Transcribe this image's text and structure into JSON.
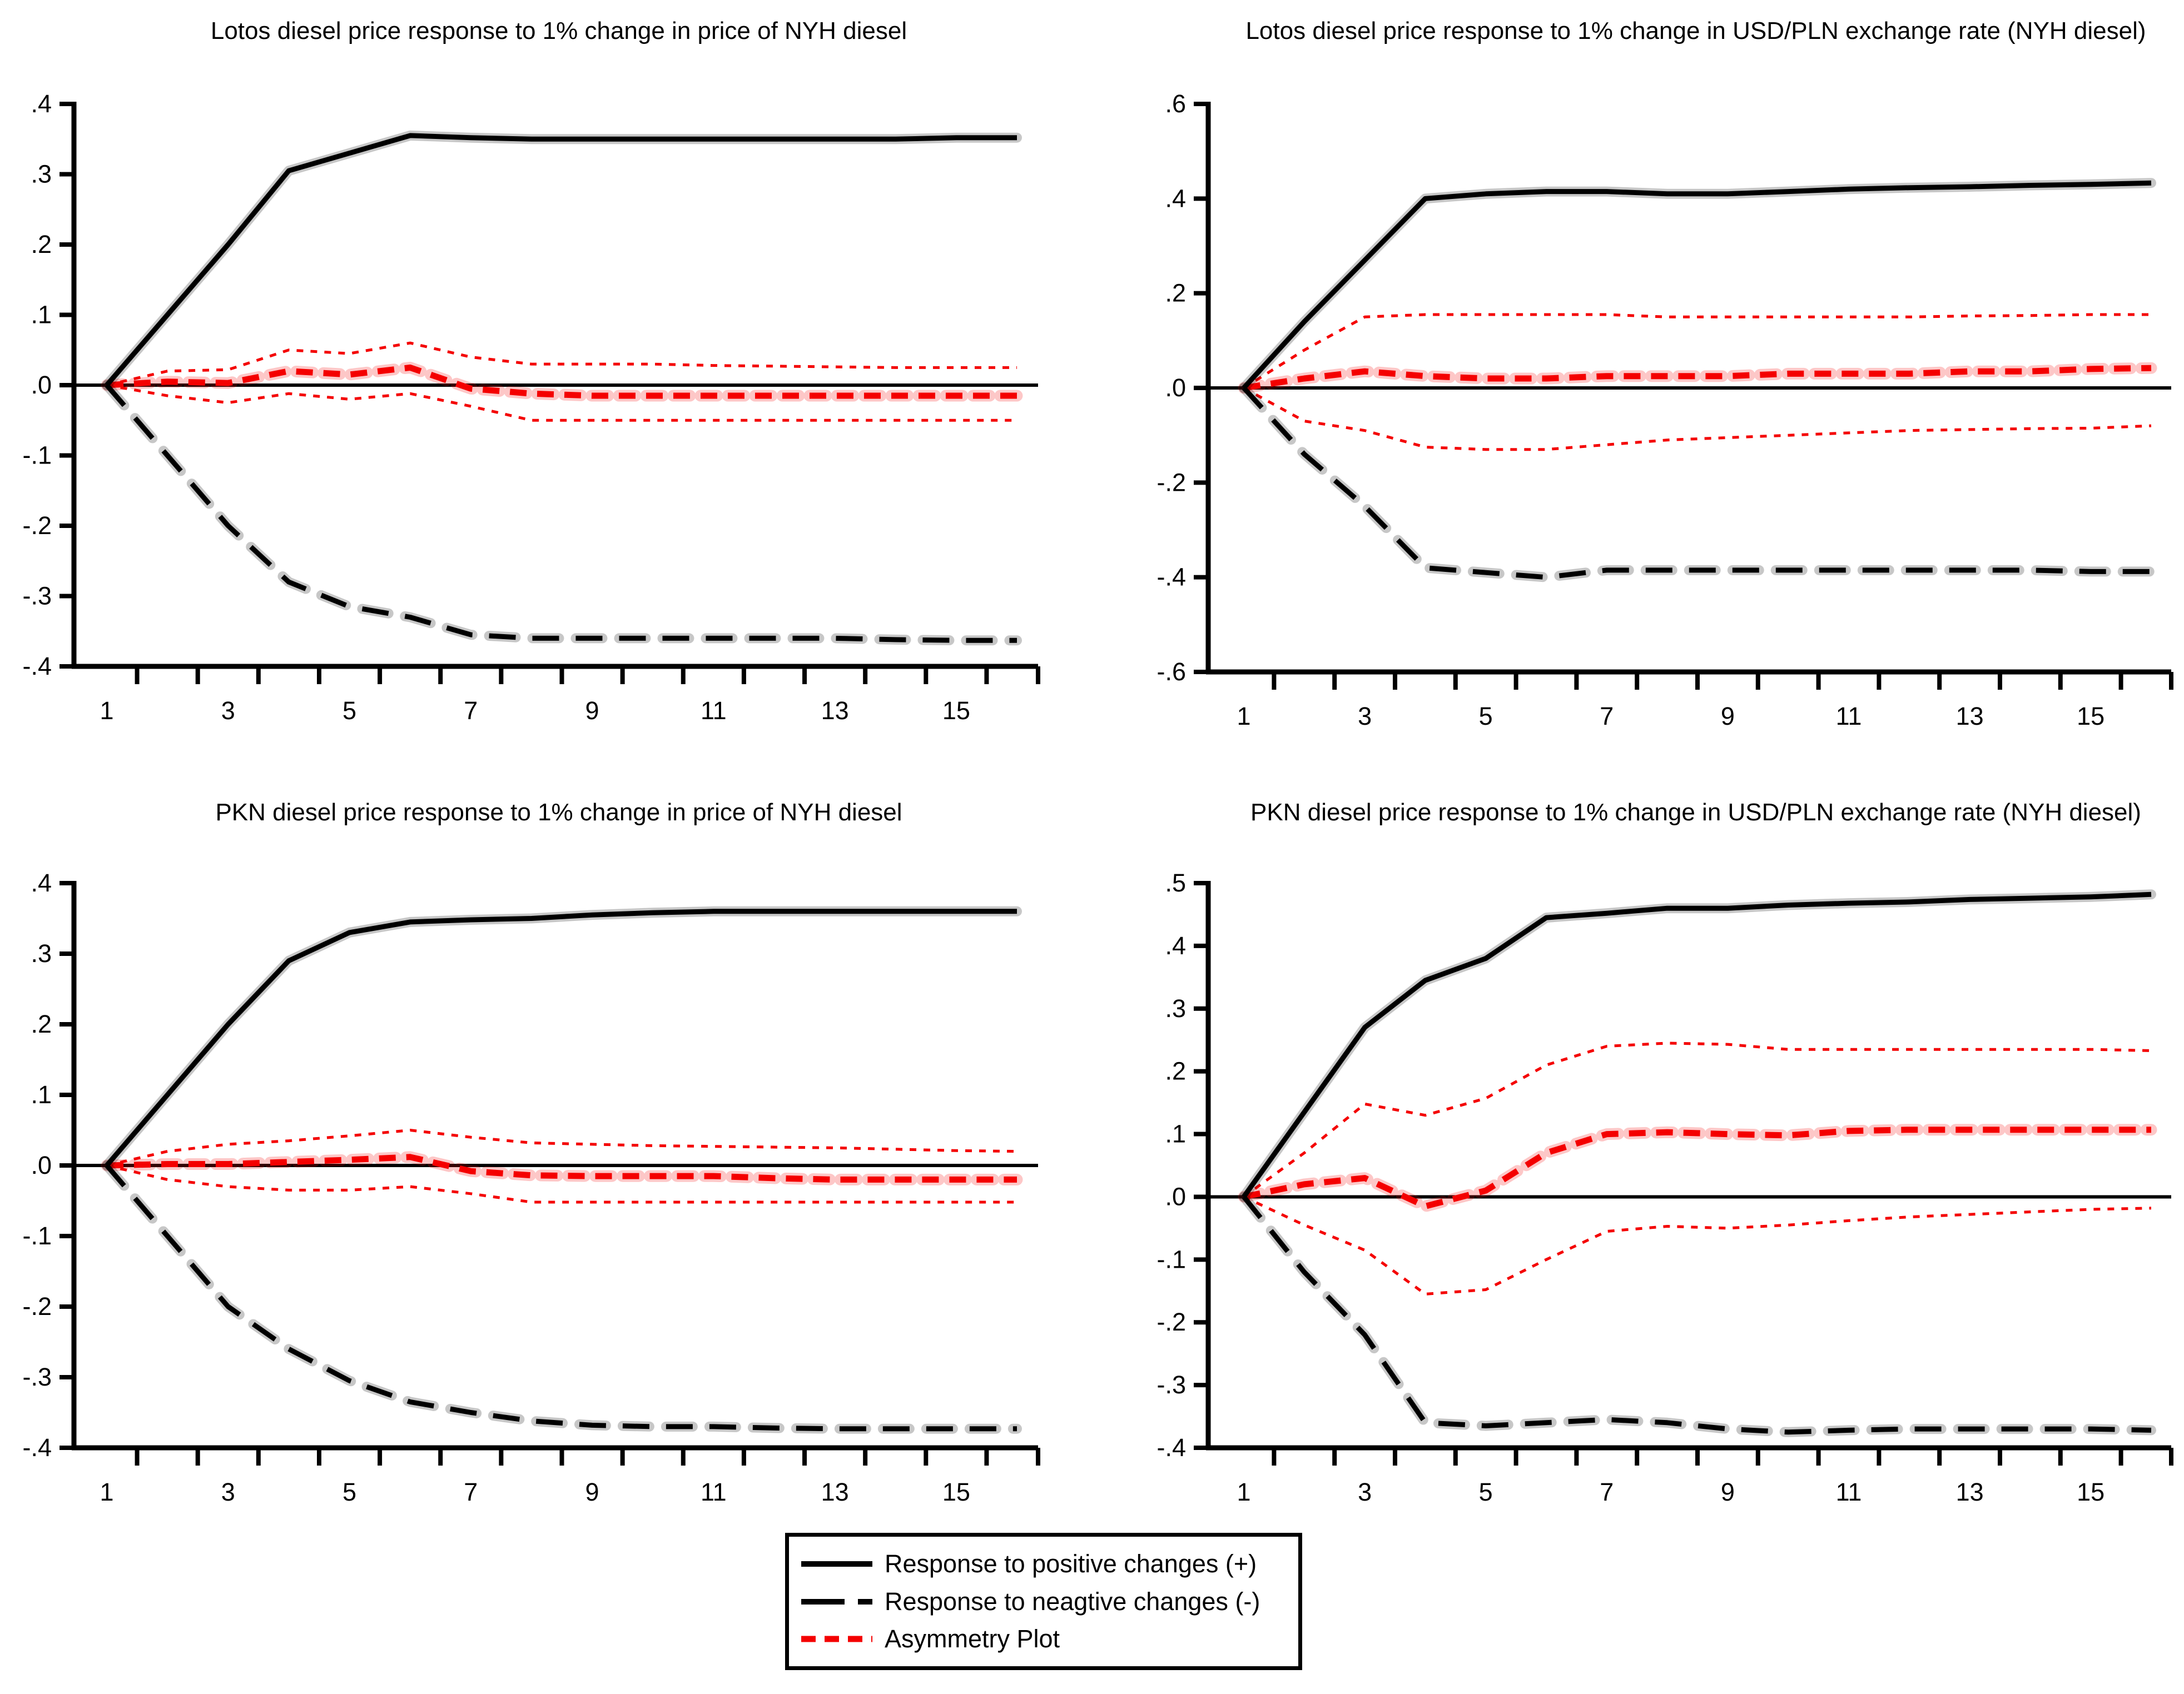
{
  "colors": {
    "line_black": "#000000",
    "line_red": "#f40000"
  },
  "legend": {
    "items": [
      {
        "label": "Response to positive changes (+)",
        "role": "positive"
      },
      {
        "label": "Response to neagtive changes (-)",
        "role": "negative"
      },
      {
        "label": "Asymmetry Plot",
        "role": "asymmetry"
      }
    ]
  },
  "chart_data": [
    {
      "type": "line",
      "title": "Lotos diesel price response to 1% change in price of NYH diesel",
      "xlabel": "",
      "ylabel": "",
      "ylim": [
        -0.4,
        0.4
      ],
      "x": [
        1,
        2,
        3,
        4,
        5,
        6,
        7,
        8,
        9,
        10,
        11,
        12,
        13,
        14,
        15,
        16
      ],
      "xtick_labels": [
        "1",
        "3",
        "5",
        "7",
        "9",
        "11",
        "13",
        "15"
      ],
      "xtick_values": [
        1,
        3,
        5,
        7,
        9,
        11,
        13,
        15
      ],
      "yticks": [
        {
          "value": 0.4,
          "label": ".4"
        },
        {
          "value": 0.3,
          "label": ".3"
        },
        {
          "value": 0.2,
          "label": ".2"
        },
        {
          "value": 0.1,
          "label": ".1"
        },
        {
          "value": 0.0,
          "label": ".0"
        },
        {
          "value": -0.1,
          "label": "-.1"
        },
        {
          "value": -0.2,
          "label": "-.2"
        },
        {
          "value": -0.3,
          "label": "-.3"
        },
        {
          "value": -0.4,
          "label": "-.4"
        }
      ],
      "series": [
        {
          "name": "Response to positive changes (+)",
          "role": "positive",
          "values": [
            0,
            0.1,
            0.2,
            0.305,
            0.33,
            0.355,
            0.352,
            0.35,
            0.35,
            0.35,
            0.35,
            0.35,
            0.35,
            0.35,
            0.352,
            0.352
          ]
        },
        {
          "name": "Response to neagtive changes (-)",
          "role": "negative",
          "values": [
            0,
            -0.1,
            -0.2,
            -0.28,
            -0.315,
            -0.33,
            -0.355,
            -0.36,
            -0.36,
            -0.36,
            -0.36,
            -0.36,
            -0.36,
            -0.362,
            -0.363,
            -0.363
          ]
        },
        {
          "name": "Asymmetry Plot",
          "role": "asymmetry",
          "values": [
            0,
            0.005,
            0.003,
            0.02,
            0.015,
            0.025,
            -0.005,
            -0.012,
            -0.015,
            -0.015,
            -0.015,
            -0.015,
            -0.015,
            -0.015,
            -0.015,
            -0.015
          ]
        },
        {
          "name": "Asymmetry upper band",
          "role": "band",
          "values": [
            0,
            0.02,
            0.022,
            0.05,
            0.045,
            0.06,
            0.04,
            0.03,
            0.03,
            0.03,
            0.028,
            0.027,
            0.026,
            0.025,
            0.025,
            0.025
          ]
        },
        {
          "name": "Asymmetry lower band",
          "role": "band",
          "values": [
            0,
            -0.015,
            -0.025,
            -0.012,
            -0.02,
            -0.012,
            -0.03,
            -0.05,
            -0.05,
            -0.05,
            -0.05,
            -0.05,
            -0.05,
            -0.05,
            -0.05,
            -0.05
          ]
        }
      ]
    },
    {
      "type": "line",
      "title": "Lotos diesel price response to 1% change in USD/PLN exchange rate (NYH diesel)",
      "xlabel": "",
      "ylabel": "",
      "ylim": [
        -0.6,
        0.6
      ],
      "x": [
        1,
        2,
        3,
        4,
        5,
        6,
        7,
        8,
        9,
        10,
        11,
        12,
        13,
        14,
        15,
        16
      ],
      "xtick_labels": [
        "1",
        "3",
        "5",
        "7",
        "9",
        "11",
        "13",
        "15"
      ],
      "xtick_values": [
        1,
        3,
        5,
        7,
        9,
        11,
        13,
        15
      ],
      "yticks": [
        {
          "value": 0.6,
          "label": ".6"
        },
        {
          "value": 0.4,
          "label": ".4"
        },
        {
          "value": 0.2,
          "label": ".2"
        },
        {
          "value": 0.0,
          "label": ".0"
        },
        {
          "value": -0.2,
          "label": "-.2"
        },
        {
          "value": -0.4,
          "label": "-.4"
        },
        {
          "value": -0.6,
          "label": "-.6"
        }
      ],
      "series": [
        {
          "name": "Response to positive changes (+)",
          "role": "positive",
          "values": [
            0,
            0.14,
            0.27,
            0.4,
            0.41,
            0.415,
            0.415,
            0.41,
            0.41,
            0.415,
            0.42,
            0.423,
            0.425,
            0.428,
            0.43,
            0.433
          ]
        },
        {
          "name": "Response to neagtive changes (-)",
          "role": "negative",
          "values": [
            0,
            -0.14,
            -0.25,
            -0.38,
            -0.39,
            -0.4,
            -0.385,
            -0.385,
            -0.385,
            -0.385,
            -0.385,
            -0.385,
            -0.385,
            -0.385,
            -0.388,
            -0.388
          ]
        },
        {
          "name": "Asymmetry Plot",
          "role": "asymmetry",
          "values": [
            0,
            0.02,
            0.035,
            0.025,
            0.02,
            0.02,
            0.025,
            0.025,
            0.025,
            0.03,
            0.03,
            0.03,
            0.035,
            0.035,
            0.04,
            0.042
          ]
        },
        {
          "name": "Asymmetry upper band",
          "role": "band",
          "values": [
            0,
            0.08,
            0.15,
            0.155,
            0.155,
            0.155,
            0.155,
            0.15,
            0.15,
            0.15,
            0.15,
            0.15,
            0.152,
            0.153,
            0.155,
            0.155
          ]
        },
        {
          "name": "Asymmetry lower band",
          "role": "band",
          "values": [
            0,
            -0.07,
            -0.09,
            -0.125,
            -0.13,
            -0.13,
            -0.12,
            -0.11,
            -0.105,
            -0.1,
            -0.095,
            -0.09,
            -0.088,
            -0.086,
            -0.085,
            -0.08
          ]
        }
      ]
    },
    {
      "type": "line",
      "title": "PKN diesel price response to 1% change in price of NYH diesel",
      "xlabel": "",
      "ylabel": "",
      "ylim": [
        -0.4,
        0.4
      ],
      "x": [
        1,
        2,
        3,
        4,
        5,
        6,
        7,
        8,
        9,
        10,
        11,
        12,
        13,
        14,
        15,
        16
      ],
      "xtick_labels": [
        "1",
        "3",
        "5",
        "7",
        "9",
        "11",
        "13",
        "15"
      ],
      "xtick_values": [
        1,
        3,
        5,
        7,
        9,
        11,
        13,
        15
      ],
      "yticks": [
        {
          "value": 0.4,
          "label": ".4"
        },
        {
          "value": 0.3,
          "label": ".3"
        },
        {
          "value": 0.2,
          "label": ".2"
        },
        {
          "value": 0.1,
          "label": ".1"
        },
        {
          "value": 0.0,
          "label": ".0"
        },
        {
          "value": -0.1,
          "label": "-.1"
        },
        {
          "value": -0.2,
          "label": "-.2"
        },
        {
          "value": -0.3,
          "label": "-.3"
        },
        {
          "value": -0.4,
          "label": "-.4"
        }
      ],
      "series": [
        {
          "name": "Response to positive changes (+)",
          "role": "positive",
          "values": [
            0,
            0.1,
            0.2,
            0.29,
            0.33,
            0.345,
            0.348,
            0.35,
            0.355,
            0.358,
            0.36,
            0.36,
            0.36,
            0.36,
            0.36,
            0.36
          ]
        },
        {
          "name": "Response to neagtive changes (-)",
          "role": "negative",
          "values": [
            0,
            -0.1,
            -0.2,
            -0.26,
            -0.305,
            -0.335,
            -0.35,
            -0.362,
            -0.368,
            -0.37,
            -0.37,
            -0.372,
            -0.373,
            -0.373,
            -0.373,
            -0.373
          ]
        },
        {
          "name": "Asymmetry Plot",
          "role": "asymmetry",
          "values": [
            0,
            0.002,
            0.002,
            0.005,
            0.008,
            0.012,
            -0.008,
            -0.014,
            -0.015,
            -0.015,
            -0.015,
            -0.018,
            -0.02,
            -0.02,
            -0.02,
            -0.02
          ]
        },
        {
          "name": "Asymmetry upper band",
          "role": "band",
          "values": [
            0,
            0.02,
            0.03,
            0.035,
            0.042,
            0.05,
            0.04,
            0.032,
            0.03,
            0.028,
            0.027,
            0.026,
            0.025,
            0.023,
            0.021,
            0.02
          ]
        },
        {
          "name": "Asymmetry lower band",
          "role": "band",
          "values": [
            0,
            -0.02,
            -0.03,
            -0.035,
            -0.035,
            -0.03,
            -0.04,
            -0.052,
            -0.052,
            -0.052,
            -0.052,
            -0.052,
            -0.052,
            -0.052,
            -0.052,
            -0.052
          ]
        }
      ]
    },
    {
      "type": "line",
      "title": "PKN diesel price response to 1% change in USD/PLN exchange rate (NYH diesel)",
      "xlabel": "",
      "ylabel": "",
      "ylim": [
        -0.4,
        0.5
      ],
      "x": [
        1,
        2,
        3,
        4,
        5,
        6,
        7,
        8,
        9,
        10,
        11,
        12,
        13,
        14,
        15,
        16
      ],
      "xtick_labels": [
        "1",
        "3",
        "5",
        "7",
        "9",
        "11",
        "13",
        "15"
      ],
      "xtick_values": [
        1,
        3,
        5,
        7,
        9,
        11,
        13,
        15
      ],
      "yticks": [
        {
          "value": 0.5,
          "label": ".5"
        },
        {
          "value": 0.4,
          "label": ".4"
        },
        {
          "value": 0.3,
          "label": ".3"
        },
        {
          "value": 0.2,
          "label": ".2"
        },
        {
          "value": 0.1,
          "label": ".1"
        },
        {
          "value": 0.0,
          "label": ".0"
        },
        {
          "value": -0.1,
          "label": "-.1"
        },
        {
          "value": -0.2,
          "label": "-.2"
        },
        {
          "value": -0.3,
          "label": "-.3"
        },
        {
          "value": -0.4,
          "label": "-.4"
        }
      ],
      "series": [
        {
          "name": "Response to positive changes (+)",
          "role": "positive",
          "values": [
            0,
            0.135,
            0.27,
            0.345,
            0.38,
            0.445,
            0.452,
            0.46,
            0.46,
            0.465,
            0.468,
            0.47,
            0.474,
            0.476,
            0.478,
            0.482
          ]
        },
        {
          "name": "Response to neagtive changes (-)",
          "role": "negative",
          "values": [
            0,
            -0.12,
            -0.22,
            -0.36,
            -0.365,
            -0.36,
            -0.355,
            -0.36,
            -0.37,
            -0.375,
            -0.372,
            -0.37,
            -0.37,
            -0.37,
            -0.37,
            -0.372
          ]
        },
        {
          "name": "Asymmetry Plot",
          "role": "asymmetry",
          "values": [
            0,
            0.02,
            0.03,
            -0.015,
            0.01,
            0.07,
            0.1,
            0.103,
            0.1,
            0.098,
            0.105,
            0.107,
            0.107,
            0.107,
            0.107,
            0.107
          ]
        },
        {
          "name": "Asymmetry upper band",
          "role": "band",
          "values": [
            0,
            0.07,
            0.148,
            0.13,
            0.157,
            0.21,
            0.24,
            0.245,
            0.243,
            0.235,
            0.235,
            0.235,
            0.235,
            0.235,
            0.235,
            0.233
          ]
        },
        {
          "name": "Asymmetry lower band",
          "role": "band",
          "values": [
            0,
            -0.045,
            -0.085,
            -0.155,
            -0.148,
            -0.1,
            -0.055,
            -0.047,
            -0.05,
            -0.045,
            -0.038,
            -0.032,
            -0.028,
            -0.024,
            -0.02,
            -0.018
          ]
        }
      ]
    }
  ]
}
